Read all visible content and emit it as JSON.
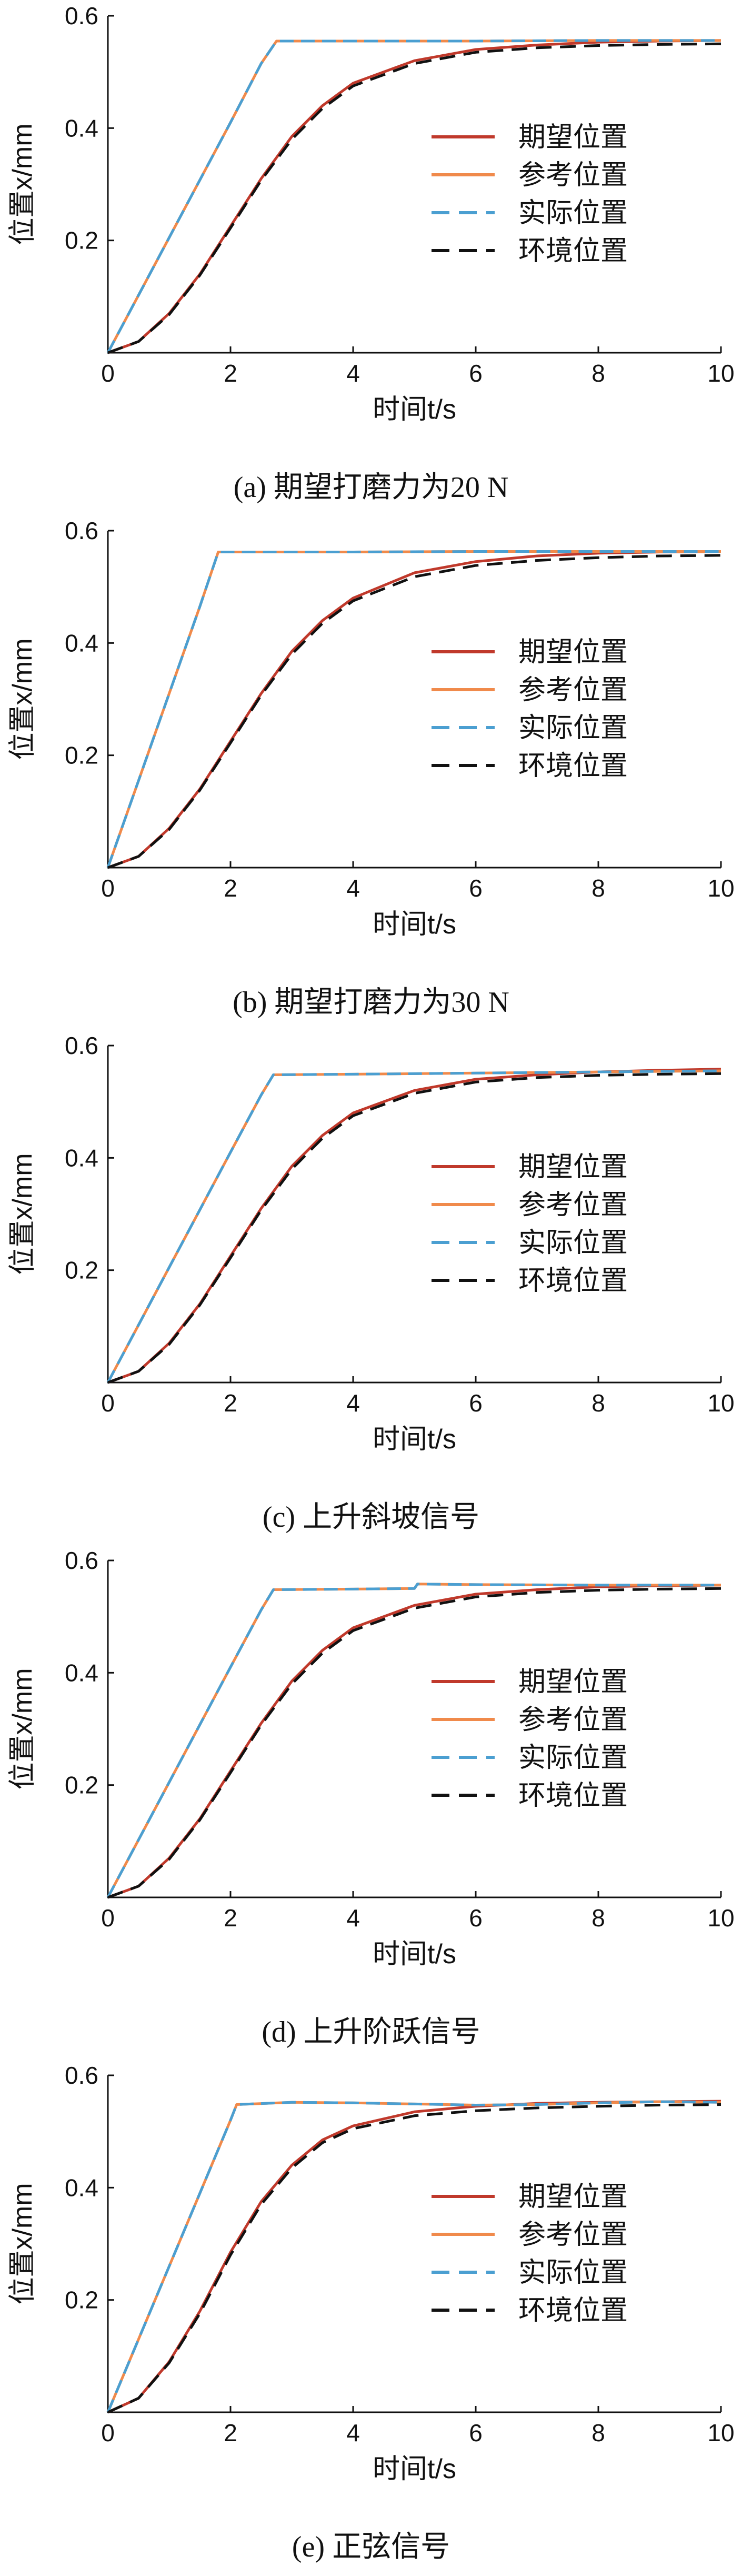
{
  "chart_data": [
    {
      "type": "line",
      "caption": "(a) 期望打磨力为20 N",
      "xlabel": "时间t/s",
      "ylabel": "位置x/mm",
      "xlim": [
        0,
        10
      ],
      "ylim": [
        0,
        0.6
      ],
      "xticks": [
        0,
        2,
        4,
        6,
        8,
        10
      ],
      "yticks": [
        0.2,
        0.4,
        0.6
      ],
      "legend_position": "right-middle",
      "series": [
        {
          "name": "期望位置",
          "color": "#c0392b",
          "dash": "solid",
          "x": [
            0,
            0.5,
            1,
            1.5,
            2,
            2.5,
            3,
            3.5,
            4,
            5,
            6,
            7,
            8,
            9,
            10
          ],
          "y": [
            0,
            0.02,
            0.07,
            0.14,
            0.225,
            0.31,
            0.385,
            0.44,
            0.48,
            0.52,
            0.54,
            0.548,
            0.553,
            0.555,
            0.556
          ]
        },
        {
          "name": "参考位置",
          "color": "#f08a4b",
          "dash": "solid",
          "x": [
            0,
            1,
            2,
            2.5,
            2.75,
            4,
            6,
            8,
            10
          ],
          "y": [
            0,
            0.205,
            0.41,
            0.515,
            0.555,
            0.555,
            0.555,
            0.556,
            0.556
          ]
        },
        {
          "name": "实际位置",
          "color": "#4b9fd1",
          "dash": "dashed",
          "x": [
            0,
            1,
            2,
            2.5,
            2.75,
            4,
            6,
            8,
            10
          ],
          "y": [
            0,
            0.205,
            0.41,
            0.515,
            0.555,
            0.555,
            0.555,
            0.556,
            0.556
          ]
        },
        {
          "name": "环境位置",
          "color": "#111111",
          "dash": "dashed",
          "x": [
            0,
            0.5,
            1,
            1.5,
            2,
            2.5,
            3,
            3.5,
            4,
            5,
            6,
            7,
            8,
            9,
            10
          ],
          "y": [
            0,
            0.02,
            0.068,
            0.138,
            0.222,
            0.307,
            0.38,
            0.435,
            0.475,
            0.515,
            0.535,
            0.543,
            0.547,
            0.549,
            0.55
          ]
        }
      ]
    },
    {
      "type": "line",
      "caption": "(b) 期望打磨力为30 N",
      "xlabel": "时间t/s",
      "ylabel": "位置x/mm",
      "xlim": [
        0,
        10
      ],
      "ylim": [
        0,
        0.6
      ],
      "xticks": [
        0,
        2,
        4,
        6,
        8,
        10
      ],
      "yticks": [
        0.2,
        0.4,
        0.6
      ],
      "legend_position": "right-middle",
      "series": [
        {
          "name": "期望位置",
          "color": "#c0392b",
          "dash": "solid",
          "x": [
            0,
            0.5,
            1,
            1.5,
            2,
            2.5,
            3,
            3.5,
            4,
            5,
            6,
            7,
            8,
            9,
            10
          ],
          "y": [
            0,
            0.02,
            0.07,
            0.14,
            0.225,
            0.31,
            0.385,
            0.44,
            0.48,
            0.525,
            0.545,
            0.555,
            0.56,
            0.562,
            0.563
          ]
        },
        {
          "name": "参考位置",
          "color": "#f08a4b",
          "dash": "solid",
          "x": [
            0,
            0.5,
            1,
            1.5,
            1.8,
            4,
            6,
            8,
            10
          ],
          "y": [
            0,
            0.155,
            0.31,
            0.465,
            0.562,
            0.562,
            0.563,
            0.563,
            0.563
          ]
        },
        {
          "name": "实际位置",
          "color": "#4b9fd1",
          "dash": "dashed",
          "x": [
            0,
            0.5,
            1,
            1.5,
            1.8,
            4,
            6,
            8,
            10
          ],
          "y": [
            0,
            0.155,
            0.31,
            0.465,
            0.562,
            0.562,
            0.563,
            0.563,
            0.563
          ]
        },
        {
          "name": "环境位置",
          "color": "#111111",
          "dash": "dashed",
          "x": [
            0,
            0.5,
            1,
            1.5,
            2,
            2.5,
            3,
            3.5,
            4,
            5,
            6,
            7,
            8,
            9,
            10
          ],
          "y": [
            0,
            0.02,
            0.068,
            0.138,
            0.222,
            0.307,
            0.38,
            0.435,
            0.475,
            0.518,
            0.538,
            0.547,
            0.552,
            0.555,
            0.556
          ]
        }
      ]
    },
    {
      "type": "line",
      "caption": "(c) 上升斜坡信号",
      "xlabel": "时间t/s",
      "ylabel": "位置x/mm",
      "xlim": [
        0,
        10
      ],
      "ylim": [
        0,
        0.6
      ],
      "xticks": [
        0,
        2,
        4,
        6,
        8,
        10
      ],
      "yticks": [
        0.2,
        0.4,
        0.6
      ],
      "legend_position": "right-middle",
      "series": [
        {
          "name": "期望位置",
          "color": "#c0392b",
          "dash": "solid",
          "x": [
            0,
            0.5,
            1,
            1.5,
            2,
            2.5,
            3,
            3.5,
            4,
            5,
            6,
            7,
            8,
            9,
            10
          ],
          "y": [
            0,
            0.02,
            0.07,
            0.14,
            0.225,
            0.31,
            0.385,
            0.44,
            0.48,
            0.52,
            0.54,
            0.548,
            0.553,
            0.556,
            0.558
          ]
        },
        {
          "name": "参考位置",
          "color": "#f08a4b",
          "dash": "solid",
          "x": [
            0,
            1,
            2,
            2.5,
            2.7,
            4,
            6,
            8,
            10
          ],
          "y": [
            0,
            0.205,
            0.41,
            0.512,
            0.548,
            0.549,
            0.551,
            0.553,
            0.555
          ]
        },
        {
          "name": "实际位置",
          "color": "#4b9fd1",
          "dash": "dashed",
          "x": [
            0,
            1,
            2,
            2.5,
            2.7,
            4,
            6,
            8,
            10
          ],
          "y": [
            0,
            0.205,
            0.41,
            0.512,
            0.548,
            0.549,
            0.551,
            0.553,
            0.555
          ]
        },
        {
          "name": "环境位置",
          "color": "#111111",
          "dash": "dashed",
          "x": [
            0,
            0.5,
            1,
            1.5,
            2,
            2.5,
            3,
            3.5,
            4,
            5,
            6,
            7,
            8,
            9,
            10
          ],
          "y": [
            0,
            0.02,
            0.068,
            0.138,
            0.222,
            0.307,
            0.38,
            0.435,
            0.475,
            0.515,
            0.535,
            0.543,
            0.547,
            0.549,
            0.55
          ]
        }
      ]
    },
    {
      "type": "line",
      "caption": "(d) 上升阶跃信号",
      "xlabel": "时间t/s",
      "ylabel": "位置x/mm",
      "xlim": [
        0,
        10
      ],
      "ylim": [
        0,
        0.6
      ],
      "xticks": [
        0,
        2,
        4,
        6,
        8,
        10
      ],
      "yticks": [
        0.2,
        0.4,
        0.6
      ],
      "legend_position": "right-middle",
      "series": [
        {
          "name": "期望位置",
          "color": "#c0392b",
          "dash": "solid",
          "x": [
            0,
            0.5,
            1,
            1.5,
            2,
            2.5,
            3,
            3.5,
            4,
            5,
            6,
            7,
            8,
            9,
            10
          ],
          "y": [
            0,
            0.02,
            0.07,
            0.14,
            0.225,
            0.31,
            0.385,
            0.44,
            0.48,
            0.52,
            0.54,
            0.548,
            0.553,
            0.555,
            0.556
          ]
        },
        {
          "name": "参考位置",
          "color": "#f08a4b",
          "dash": "solid",
          "x": [
            0,
            1,
            2,
            2.5,
            2.7,
            4,
            5,
            5.05,
            6,
            8,
            10
          ],
          "y": [
            0,
            0.205,
            0.41,
            0.512,
            0.548,
            0.549,
            0.55,
            0.558,
            0.557,
            0.556,
            0.556
          ]
        },
        {
          "name": "实际位置",
          "color": "#4b9fd1",
          "dash": "dashed",
          "x": [
            0,
            1,
            2,
            2.5,
            2.7,
            4,
            5,
            5.05,
            6,
            8,
            10
          ],
          "y": [
            0,
            0.205,
            0.41,
            0.512,
            0.548,
            0.549,
            0.55,
            0.558,
            0.557,
            0.556,
            0.556
          ]
        },
        {
          "name": "环境位置",
          "color": "#111111",
          "dash": "dashed",
          "x": [
            0,
            0.5,
            1,
            1.5,
            2,
            2.5,
            3,
            3.5,
            4,
            5,
            6,
            7,
            8,
            9,
            10
          ],
          "y": [
            0,
            0.02,
            0.068,
            0.138,
            0.222,
            0.307,
            0.38,
            0.435,
            0.475,
            0.515,
            0.535,
            0.543,
            0.547,
            0.549,
            0.55
          ]
        }
      ]
    },
    {
      "type": "line",
      "caption": "(e) 正弦信号",
      "xlabel": "时间t/s",
      "ylabel": "位置x/mm",
      "xlim": [
        0,
        10
      ],
      "ylim": [
        0,
        0.6
      ],
      "xticks": [
        0,
        2,
        4,
        6,
        8,
        10
      ],
      "yticks": [
        0.2,
        0.4,
        0.6
      ],
      "legend_position": "right-middle",
      "series": [
        {
          "name": "期望位置",
          "color": "#c0392b",
          "dash": "solid",
          "x": [
            0,
            0.5,
            1,
            1.5,
            2,
            2.5,
            3,
            3.5,
            4,
            5,
            6,
            7,
            8,
            9,
            10
          ],
          "y": [
            0,
            0.025,
            0.09,
            0.18,
            0.285,
            0.375,
            0.44,
            0.485,
            0.51,
            0.535,
            0.545,
            0.55,
            0.552,
            0.553,
            0.554
          ]
        },
        {
          "name": "参考位置",
          "color": "#f08a4b",
          "dash": "solid",
          "x": [
            0,
            1,
            1.5,
            2,
            2.1,
            3,
            4,
            5,
            6,
            7,
            8,
            9,
            10
          ],
          "y": [
            0,
            0.26,
            0.39,
            0.52,
            0.548,
            0.552,
            0.551,
            0.549,
            0.547,
            0.548,
            0.551,
            0.553,
            0.552
          ]
        },
        {
          "name": "实际位置",
          "color": "#4b9fd1",
          "dash": "dashed",
          "x": [
            0,
            1,
            1.5,
            2,
            2.1,
            3,
            4,
            5,
            6,
            7,
            8,
            9,
            10
          ],
          "y": [
            0,
            0.26,
            0.39,
            0.52,
            0.548,
            0.552,
            0.551,
            0.549,
            0.547,
            0.548,
            0.551,
            0.553,
            0.552
          ]
        },
        {
          "name": "环境位置",
          "color": "#111111",
          "dash": "dashed",
          "x": [
            0,
            0.5,
            1,
            1.5,
            2,
            2.5,
            3,
            3.5,
            4,
            5,
            6,
            7,
            8,
            9,
            10
          ],
          "y": [
            0,
            0.025,
            0.088,
            0.176,
            0.28,
            0.37,
            0.435,
            0.48,
            0.505,
            0.528,
            0.537,
            0.542,
            0.545,
            0.547,
            0.548
          ]
        }
      ]
    }
  ]
}
